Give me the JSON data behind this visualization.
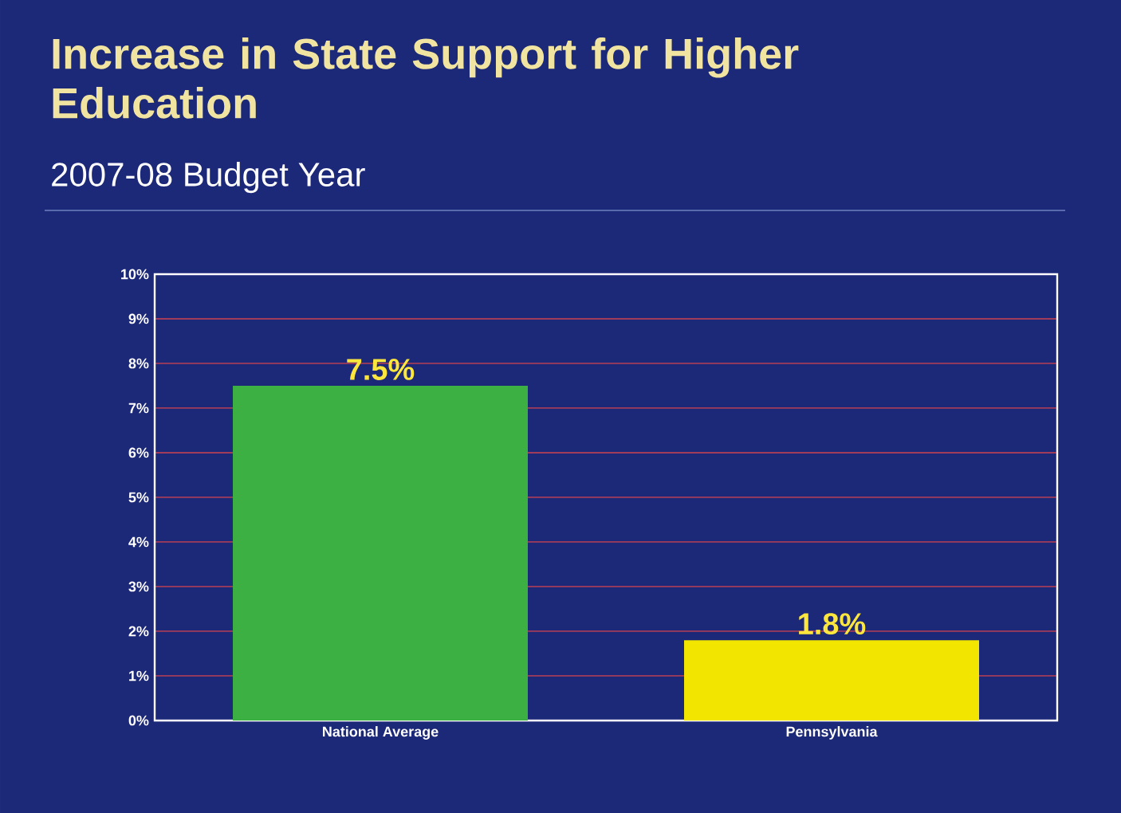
{
  "chart_data": {
    "type": "bar",
    "title": "Increase in State Support for Higher Education",
    "subtitle": "2007-08 Budget Year",
    "categories": [
      "National Average",
      "Pennsylvania"
    ],
    "values": [
      7.5,
      1.8
    ],
    "colors": [
      "#3cb043",
      "#f2e600"
    ],
    "value_labels": [
      "7.5%",
      "1.8%"
    ],
    "ylim": [
      0,
      10
    ],
    "yticks": [
      {
        "value": 0,
        "label": "0%"
      },
      {
        "value": 1,
        "label": "1%"
      },
      {
        "value": 2,
        "label": "2%"
      },
      {
        "value": 3,
        "label": "3%"
      },
      {
        "value": 4,
        "label": "4%"
      },
      {
        "value": 5,
        "label": "5%"
      },
      {
        "value": 6,
        "label": "6%"
      },
      {
        "value": 7,
        "label": "7%"
      },
      {
        "value": 8,
        "label": "8%"
      },
      {
        "value": 9,
        "label": "9%"
      },
      {
        "value": 10,
        "label": "10%"
      }
    ],
    "grid": "y"
  }
}
